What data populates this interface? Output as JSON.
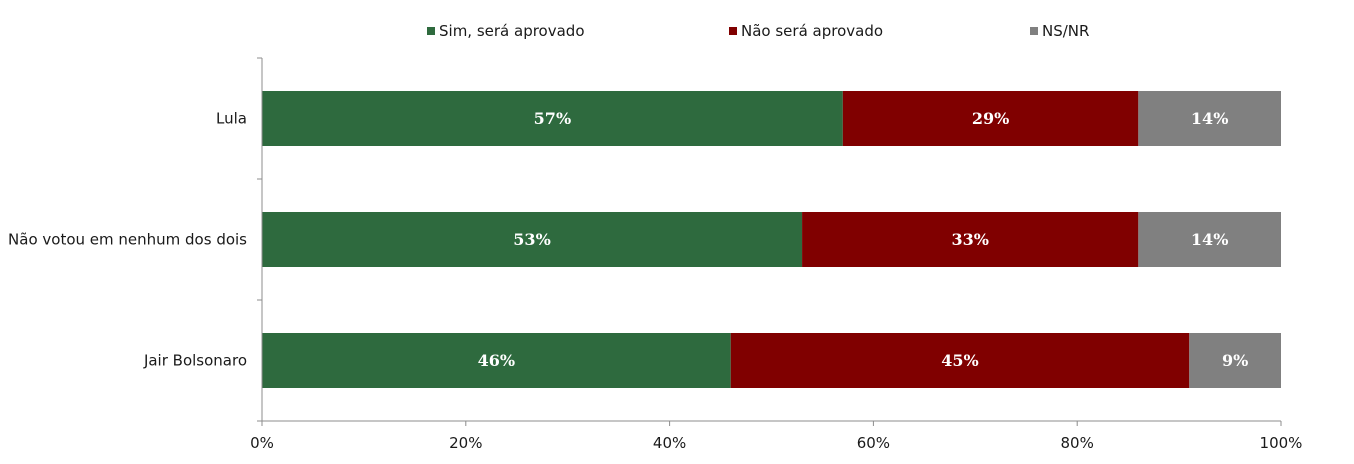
{
  "chart_data": {
    "type": "bar",
    "orientation": "horizontal",
    "stacked": true,
    "percent_stacked": true,
    "categories": [
      "Lula",
      "Não votou em nenhum dos dois",
      "Jair Bolsonaro"
    ],
    "series": [
      {
        "name": "Sim, será aprovado",
        "color": "#2e6a3e",
        "values": [
          57,
          53,
          46
        ],
        "labels": [
          "57%",
          "53%",
          "46%"
        ]
      },
      {
        "name": "Não será aprovado",
        "color": "#800000",
        "values": [
          29,
          33,
          45
        ],
        "labels": [
          "29%",
          "33%",
          "45%"
        ]
      },
      {
        "name": "NS/NR",
        "color": "#808080",
        "values": [
          14,
          14,
          9
        ],
        "labels": [
          "14%",
          "14%",
          "9%"
        ]
      }
    ],
    "xlim": [
      0,
      100
    ],
    "x_ticks": [
      0,
      20,
      40,
      60,
      80,
      100
    ],
    "x_tick_labels": [
      "0%",
      "20%",
      "40%",
      "60%",
      "80%",
      "100%"
    ],
    "legend_position": "top",
    "grid": false,
    "title": "",
    "xlabel": "",
    "ylabel": ""
  }
}
